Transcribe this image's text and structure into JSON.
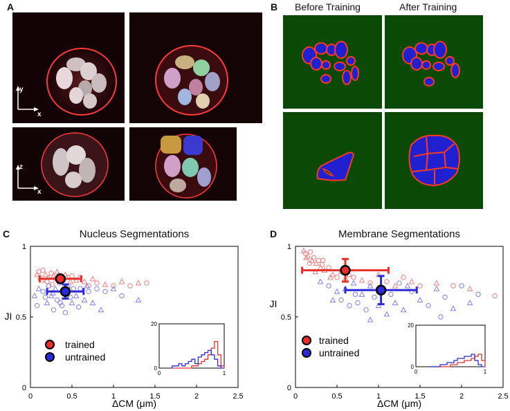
{
  "panels": {
    "a": {
      "letter": "A",
      "xy_axis": {
        "y": "y",
        "x": "x"
      },
      "xz_axis": {
        "z": "z",
        "x": "x"
      }
    },
    "b": {
      "letter": "B",
      "col_before": "Before Training",
      "col_after": "After Training"
    },
    "c": {
      "letter": "C"
    },
    "d": {
      "letter": "D"
    }
  },
  "colors": {
    "trained": "#e8302a",
    "untrained": "#2a2ad8",
    "trained_light": "#f08080",
    "untrained_light": "#8080f0",
    "seg_background": "#0a4a06"
  },
  "chart_data": [
    {
      "type": "scatter",
      "title": "Nucleus Segmentations",
      "xlabel": "ΔCM (μm)",
      "ylabel": "JI",
      "xlim": [
        0,
        2.5
      ],
      "ylim": [
        0,
        1
      ],
      "xticks": [
        "0",
        "0.5",
        "1",
        "1.5",
        "2",
        "2.5"
      ],
      "yticks": [
        "0",
        "0.5",
        "1"
      ],
      "legend": {
        "placement": "bottom-left",
        "entries": [
          "trained",
          "untrained"
        ]
      },
      "summary": [
        {
          "name": "trained",
          "x": 0.36,
          "x_err": 0.25,
          "y": 0.77,
          "y_err": 0.02
        },
        {
          "name": "untrained",
          "x": 0.42,
          "x_err": 0.22,
          "y": 0.68,
          "y_err": 0.05
        }
      ],
      "series": [
        {
          "name": "trained",
          "points": [
            [
              0.08,
              0.8
            ],
            [
              0.1,
              0.82
            ],
            [
              0.12,
              0.78
            ],
            [
              0.15,
              0.83
            ],
            [
              0.18,
              0.8
            ],
            [
              0.2,
              0.75
            ],
            [
              0.22,
              0.78
            ],
            [
              0.25,
              0.81
            ],
            [
              0.28,
              0.79
            ],
            [
              0.3,
              0.77
            ],
            [
              0.32,
              0.82
            ],
            [
              0.35,
              0.74
            ],
            [
              0.38,
              0.79
            ],
            [
              0.4,
              0.76
            ],
            [
              0.42,
              0.8
            ],
            [
              0.45,
              0.78
            ],
            [
              0.48,
              0.75
            ],
            [
              0.5,
              0.79
            ],
            [
              0.55,
              0.76
            ],
            [
              0.6,
              0.78
            ],
            [
              0.65,
              0.75
            ],
            [
              0.7,
              0.72
            ],
            [
              0.75,
              0.77
            ],
            [
              0.8,
              0.74
            ],
            [
              0.9,
              0.73
            ],
            [
              1.0,
              0.72
            ],
            [
              1.1,
              0.75
            ],
            [
              1.2,
              0.72
            ],
            [
              1.3,
              0.74
            ],
            [
              1.4,
              0.74
            ],
            [
              0.14,
              0.76
            ],
            [
              0.26,
              0.73
            ],
            [
              0.34,
              0.8
            ],
            [
              0.46,
              0.72
            ]
          ]
        },
        {
          "name": "untrained",
          "points": [
            [
              0.05,
              0.65
            ],
            [
              0.08,
              0.58
            ],
            [
              0.1,
              0.7
            ],
            [
              0.15,
              0.68
            ],
            [
              0.2,
              0.6
            ],
            [
              0.22,
              0.72
            ],
            [
              0.25,
              0.65
            ],
            [
              0.28,
              0.55
            ],
            [
              0.3,
              0.7
            ],
            [
              0.32,
              0.62
            ],
            [
              0.35,
              0.75
            ],
            [
              0.38,
              0.58
            ],
            [
              0.4,
              0.68
            ],
            [
              0.42,
              0.53
            ],
            [
              0.45,
              0.72
            ],
            [
              0.48,
              0.64
            ],
            [
              0.5,
              0.6
            ],
            [
              0.52,
              0.7
            ],
            [
              0.55,
              0.65
            ],
            [
              0.6,
              0.7
            ],
            [
              0.65,
              0.62
            ],
            [
              0.7,
              0.68
            ],
            [
              0.75,
              0.6
            ],
            [
              0.8,
              0.7
            ],
            [
              0.85,
              0.55
            ],
            [
              0.9,
              0.68
            ],
            [
              1.0,
              0.7
            ],
            [
              1.1,
              0.65
            ],
            [
              1.3,
              0.62
            ],
            [
              0.18,
              0.64
            ],
            [
              0.27,
              0.67
            ],
            [
              0.36,
              0.6
            ],
            [
              0.44,
              0.66
            ],
            [
              0.58,
              0.57
            ],
            [
              0.68,
              0.72
            ]
          ]
        }
      ],
      "inset": {
        "xlim": [
          0,
          1
        ],
        "ylim": [
          0,
          20
        ],
        "xticks": [
          "0",
          "1"
        ],
        "yticks": [
          "0",
          "20"
        ],
        "bins": [
          0.2,
          0.25,
          0.3,
          0.35,
          0.4,
          0.45,
          0.5,
          0.55,
          0.6,
          0.65,
          0.7,
          0.75,
          0.8,
          0.85,
          0.9,
          0.95
        ],
        "series": [
          {
            "name": "trained",
            "counts": [
              0,
              0,
              0,
              0,
              0,
              0,
              1,
              1,
              2,
              3,
              4,
              6,
              9,
              12,
              6,
              1
            ]
          },
          {
            "name": "untrained",
            "counts": [
              1,
              1,
              2,
              1,
              2,
              3,
              4,
              2,
              5,
              6,
              7,
              8,
              6,
              4,
              1,
              0
            ]
          }
        ]
      }
    },
    {
      "type": "scatter",
      "title": "Membrane Segmentations",
      "xlabel": "ΔCM (μm)",
      "ylabel": "JI",
      "xlim": [
        0,
        2.5
      ],
      "ylim": [
        0,
        1
      ],
      "xticks": [
        "0",
        "0.5",
        "1",
        "1.5",
        "2",
        "2.5"
      ],
      "yticks": [
        "0",
        "0.5",
        "1"
      ],
      "legend": {
        "placement": "bottom-left",
        "entries": [
          "trained",
          "untrained"
        ]
      },
      "summary": [
        {
          "name": "trained",
          "x": 0.6,
          "x_err": 0.52,
          "y": 0.83,
          "y_err": 0.08
        },
        {
          "name": "untrained",
          "x": 1.03,
          "x_err": 0.43,
          "y": 0.69,
          "y_err": 0.1
        }
      ],
      "series": [
        {
          "name": "trained",
          "points": [
            [
              0.1,
              0.97
            ],
            [
              0.12,
              0.95
            ],
            [
              0.15,
              0.93
            ],
            [
              0.18,
              0.96
            ],
            [
              0.2,
              0.9
            ],
            [
              0.22,
              0.92
            ],
            [
              0.25,
              0.88
            ],
            [
              0.28,
              0.9
            ],
            [
              0.3,
              0.85
            ],
            [
              0.32,
              0.87
            ],
            [
              0.35,
              0.83
            ],
            [
              0.4,
              0.85
            ],
            [
              0.45,
              0.8
            ],
            [
              0.5,
              0.78
            ],
            [
              0.55,
              0.82
            ],
            [
              0.6,
              0.76
            ],
            [
              0.65,
              0.8
            ],
            [
              0.7,
              0.78
            ],
            [
              0.8,
              0.76
            ],
            [
              0.9,
              0.74
            ],
            [
              1.0,
              0.8
            ],
            [
              1.1,
              0.75
            ],
            [
              1.2,
              0.72
            ],
            [
              1.3,
              0.78
            ],
            [
              1.4,
              0.75
            ],
            [
              1.5,
              0.72
            ],
            [
              1.7,
              0.74
            ],
            [
              1.9,
              0.72
            ],
            [
              2.1,
              0.7
            ],
            [
              2.4,
              0.65
            ],
            [
              0.13,
              0.92
            ],
            [
              0.17,
              0.88
            ],
            [
              0.24,
              0.82
            ],
            [
              0.33,
              0.9
            ],
            [
              0.42,
              0.78
            ]
          ]
        },
        {
          "name": "untrained",
          "points": [
            [
              0.3,
              0.75
            ],
            [
              0.4,
              0.72
            ],
            [
              0.5,
              0.68
            ],
            [
              0.55,
              0.62
            ],
            [
              0.6,
              0.7
            ],
            [
              0.65,
              0.58
            ],
            [
              0.7,
              0.74
            ],
            [
              0.75,
              0.6
            ],
            [
              0.8,
              0.66
            ],
            [
              0.85,
              0.55
            ],
            [
              0.9,
              0.72
            ],
            [
              0.95,
              0.64
            ],
            [
              1.0,
              0.58
            ],
            [
              1.05,
              0.7
            ],
            [
              1.1,
              0.52
            ],
            [
              1.15,
              0.66
            ],
            [
              1.2,
              0.6
            ],
            [
              1.25,
              0.74
            ],
            [
              1.3,
              0.55
            ],
            [
              1.4,
              0.68
            ],
            [
              1.5,
              0.62
            ],
            [
              1.6,
              0.58
            ],
            [
              1.7,
              0.7
            ],
            [
              1.8,
              0.64
            ],
            [
              1.9,
              0.56
            ],
            [
              2.0,
              0.72
            ],
            [
              2.1,
              0.6
            ],
            [
              2.2,
              0.66
            ],
            [
              0.45,
              0.62
            ],
            [
              0.72,
              0.66
            ],
            [
              1.35,
              0.72
            ],
            [
              1.75,
              0.5
            ],
            [
              0.9,
              0.48
            ]
          ]
        }
      ],
      "inset": {
        "xlim": [
          0,
          1
        ],
        "ylim": [
          0,
          20
        ],
        "xticks": [
          "0",
          "1"
        ],
        "yticks": [
          "0",
          "20"
        ],
        "bins": [
          0.2,
          0.25,
          0.3,
          0.35,
          0.4,
          0.45,
          0.5,
          0.55,
          0.6,
          0.65,
          0.7,
          0.75,
          0.8,
          0.85,
          0.9,
          0.95
        ],
        "series": [
          {
            "name": "trained",
            "counts": [
              0,
              0,
              0,
              0,
              0,
              0,
              1,
              1,
              2,
              2,
              3,
              3,
              4,
              5,
              6,
              3
            ]
          },
          {
            "name": "untrained",
            "counts": [
              0,
              0,
              0,
              1,
              1,
              2,
              2,
              3,
              4,
              4,
              5,
              5,
              6,
              3,
              1,
              0
            ]
          }
        ]
      }
    }
  ]
}
